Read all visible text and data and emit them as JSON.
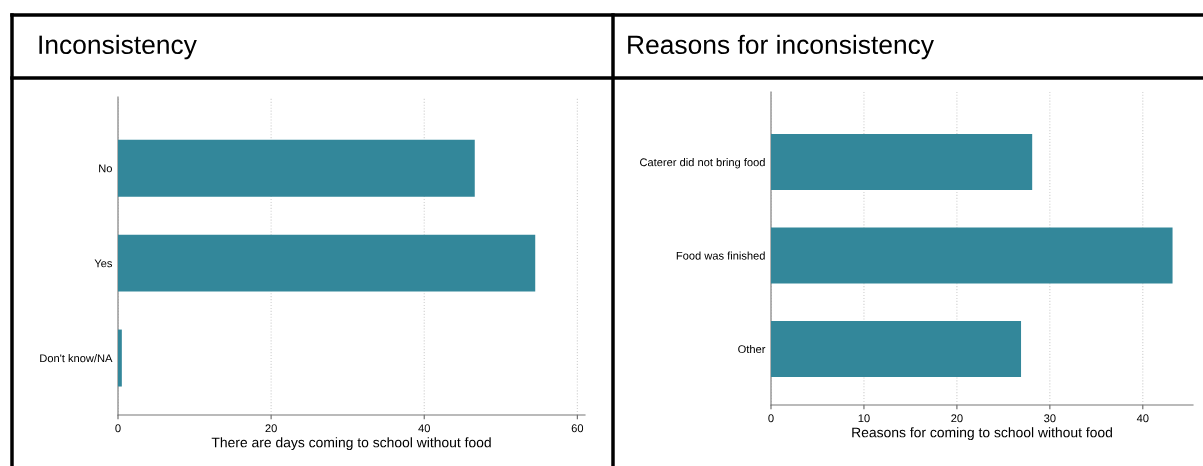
{
  "chart_data": [
    {
      "type": "bar",
      "orientation": "horizontal",
      "title": "Inconsistency",
      "xlabel": "There are days coming to school without food",
      "categories": [
        "No",
        "Yes",
        "Don't know/NA"
      ],
      "values": [
        46.6,
        54.5,
        0.5
      ],
      "color": "#33879a",
      "xlim": [
        0,
        61
      ],
      "xticks": [
        0,
        20,
        40,
        60
      ],
      "grid": "x"
    },
    {
      "type": "bar",
      "orientation": "horizontal",
      "title": "Reasons for inconsistency",
      "xlabel": "Reasons for coming to school without food",
      "categories": [
        "Caterer did not bring food",
        "Food was finished",
        "Other"
      ],
      "values": [
        28.1,
        43.2,
        26.9
      ],
      "color": "#33879a",
      "xlim": [
        0,
        45.4
      ],
      "xticks": [
        0,
        10,
        20,
        30,
        40
      ],
      "grid": "x"
    }
  ]
}
